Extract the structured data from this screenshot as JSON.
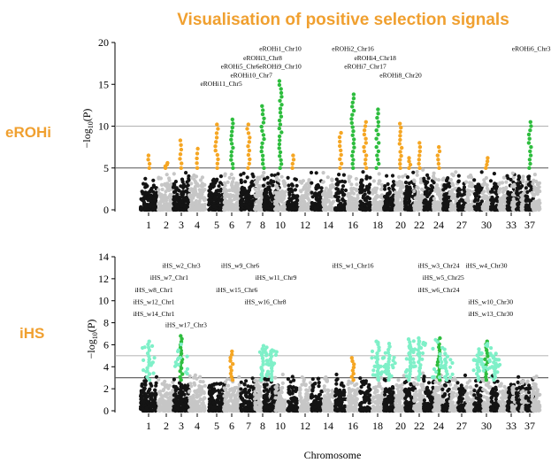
{
  "title": "Visualisation of positive selection signals",
  "colors": {
    "chr_odd": "#141414",
    "chr_even": "#c6c6c6",
    "top_orange": "#F5A623",
    "top_green": "#2EBD3E",
    "bottom_cyan": "#7FF0C8",
    "bottom_orange": "#F5A623",
    "bottom_green": "#2EBD3E",
    "title_color": "#F0A030"
  },
  "chart_data": [
    {
      "type": "scatter",
      "panel_label": "eROHi",
      "ylabel_prefix": "−log",
      "ylabel_sub": "10",
      "ylabel_suffix": "(P)",
      "ylim": [
        0,
        20
      ],
      "yticks": [
        0,
        5,
        10,
        15,
        20
      ],
      "threshold_lines": [
        5,
        10
      ],
      "xticks": [
        "1",
        "2",
        "3",
        "4",
        "5",
        "6",
        "7",
        "8",
        "10",
        "12",
        "14",
        "16",
        "18",
        "20",
        "22",
        "24",
        "27",
        "30",
        "33",
        "37"
      ],
      "chromosomes": 38,
      "peaks": [
        {
          "chr": 1,
          "max": 6.5,
          "color": "orange"
        },
        {
          "chr": 2,
          "max": 5.6,
          "color": "orange"
        },
        {
          "chr": 3,
          "max": 8.3,
          "color": "orange"
        },
        {
          "chr": 4,
          "max": 7.3,
          "color": "orange"
        },
        {
          "chr": 5,
          "max": 10.2,
          "color": "orange"
        },
        {
          "chr": 6,
          "max": 10.8,
          "color": "green"
        },
        {
          "chr": 7,
          "max": 10.2,
          "color": "orange"
        },
        {
          "chr": 8,
          "max": 12.4,
          "color": "green"
        },
        {
          "chr": 10,
          "max": 15.4,
          "color": "green"
        },
        {
          "chr": 11,
          "max": 6.5,
          "color": "orange"
        },
        {
          "chr": 15,
          "max": 9.2,
          "color": "orange"
        },
        {
          "chr": 16,
          "max": 13.8,
          "color": "green"
        },
        {
          "chr": 17,
          "max": 10.5,
          "color": "orange"
        },
        {
          "chr": 18,
          "max": 12.0,
          "color": "green"
        },
        {
          "chr": 20,
          "max": 10.3,
          "color": "orange"
        },
        {
          "chr": 21,
          "max": 6.2,
          "color": "orange"
        },
        {
          "chr": 22,
          "max": 8.0,
          "color": "orange"
        },
        {
          "chr": 24,
          "max": 7.5,
          "color": "orange"
        },
        {
          "chr": 30,
          "max": 6.2,
          "color": "orange"
        },
        {
          "chr": 37,
          "max": 10.5,
          "color": "green"
        }
      ],
      "annotations": [
        {
          "text": "eROHi1_Chr10",
          "chr": 10,
          "y": 19.0
        },
        {
          "text": "eROHi3_Chr8",
          "chr": 8,
          "y": 17.9
        },
        {
          "text": "eROHi5_Chr6",
          "chr": 6.5,
          "y": 16.9
        },
        {
          "text": "eROHi9_Chr10",
          "chr": 10,
          "y": 16.9
        },
        {
          "text": "eROHi10_Chr7",
          "chr": 7.2,
          "y": 15.8
        },
        {
          "text": "eROHi11_Chr5",
          "chr": 5.3,
          "y": 14.8
        },
        {
          "text": "eROHi2_Chr16",
          "chr": 16,
          "y": 19.0
        },
        {
          "text": "eROHi4_Chr18",
          "chr": 17.8,
          "y": 17.9
        },
        {
          "text": "eROHi7_Chr17",
          "chr": 17,
          "y": 16.9
        },
        {
          "text": "eROHi8_Chr20",
          "chr": 20,
          "y": 15.8
        },
        {
          "text": "eROHi6_Chr37",
          "chr": 37.5,
          "y": 19.0
        }
      ]
    },
    {
      "type": "scatter",
      "panel_label": "iHS",
      "ylabel_prefix": "−log",
      "ylabel_sub": "10",
      "ylabel_suffix": "(P)",
      "xlabel": "Chromosome",
      "ylim": [
        0,
        14
      ],
      "yticks": [
        0,
        2,
        4,
        6,
        8,
        10,
        12,
        14
      ],
      "threshold_lines": [
        3,
        5
      ],
      "xticks": [
        "1",
        "2",
        "3",
        "4",
        "5",
        "6",
        "7",
        "8",
        "10",
        "12",
        "14",
        "16",
        "18",
        "20",
        "22",
        "24",
        "27",
        "30",
        "33",
        "37"
      ],
      "chromosomes": 38,
      "peaks": [
        {
          "chr": 1,
          "max": 6.3,
          "color": "cyan"
        },
        {
          "chr": 3,
          "max": 6.8,
          "color": "green"
        },
        {
          "chr": 6,
          "max": 5.4,
          "color": "orange"
        },
        {
          "chr": 8,
          "max": 5.9,
          "color": "cyan"
        },
        {
          "chr": 9,
          "max": 5.5,
          "color": "cyan"
        },
        {
          "chr": 16,
          "max": 4.8,
          "color": "orange"
        },
        {
          "chr": 18,
          "max": 6.3,
          "color": "cyan"
        },
        {
          "chr": 19,
          "max": 6.1,
          "color": "cyan"
        },
        {
          "chr": 21,
          "max": 6.5,
          "color": "cyan"
        },
        {
          "chr": 22,
          "max": 6.6,
          "color": "cyan"
        },
        {
          "chr": 24,
          "max": 6.6,
          "color": "green"
        },
        {
          "chr": 25,
          "max": 5.2,
          "color": "cyan"
        },
        {
          "chr": 29,
          "max": 5.6,
          "color": "cyan"
        },
        {
          "chr": 30,
          "max": 6.3,
          "color": "green"
        },
        {
          "chr": 31,
          "max": 5.2,
          "color": "cyan"
        }
      ],
      "annotations": [
        {
          "text": "iHS_w2_Chr3",
          "chr": 3,
          "y": 13.0
        },
        {
          "text": "iHS_w9_Chr6",
          "chr": 6.5,
          "y": 13.0
        },
        {
          "text": "iHS_w7_Chr1",
          "chr": 2.2,
          "y": 11.9
        },
        {
          "text": "iHS_w11_Chr9",
          "chr": 9.5,
          "y": 11.9
        },
        {
          "text": "iHS_w8_Chr1",
          "chr": 1.3,
          "y": 10.8
        },
        {
          "text": "iHS_w15_Chr6",
          "chr": 6.3,
          "y": 10.8
        },
        {
          "text": "iHS_w12_Chr1",
          "chr": 1.3,
          "y": 9.7
        },
        {
          "text": "iHS_w16_Chr8",
          "chr": 8.3,
          "y": 9.7
        },
        {
          "text": "iHS_w14_Chr1",
          "chr": 1.3,
          "y": 8.6
        },
        {
          "text": "iHS_w17_Chr3",
          "chr": 3.3,
          "y": 7.6
        },
        {
          "text": "iHS_w1_Chr16",
          "chr": 16,
          "y": 13.0
        },
        {
          "text": "iHS_w3_Chr24",
          "chr": 24,
          "y": 13.0
        },
        {
          "text": "iHS_w4_Chr30",
          "chr": 30,
          "y": 13.0
        },
        {
          "text": "iHS_w5_Chr25",
          "chr": 24.6,
          "y": 11.9
        },
        {
          "text": "iHS_w6_Chr24",
          "chr": 24,
          "y": 10.8
        },
        {
          "text": "iHS_w10_Chr30",
          "chr": 30.5,
          "y": 9.7
        },
        {
          "text": "iHS_w13_Chr30",
          "chr": 30.5,
          "y": 8.6
        }
      ]
    }
  ]
}
